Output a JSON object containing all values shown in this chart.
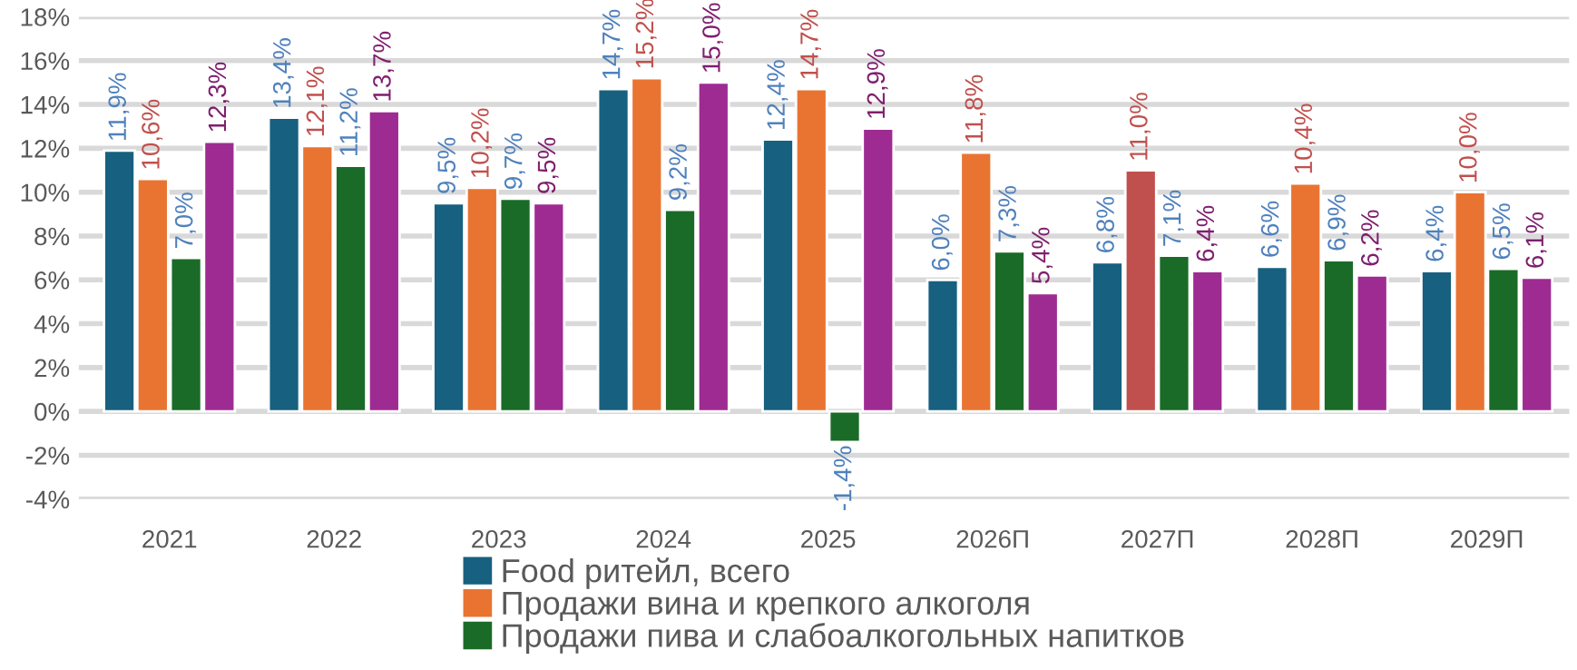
{
  "chart_data": {
    "type": "bar",
    "categories": [
      "2021",
      "2022",
      "2023",
      "2024",
      "2025",
      "2026П",
      "2027П",
      "2028П",
      "2029П"
    ],
    "series": [
      {
        "name": "Food ритейл, всего",
        "color": "#17607f",
        "values": [
          11.9,
          13.4,
          9.5,
          14.7,
          12.4,
          6.0,
          6.8,
          6.6,
          6.4
        ],
        "value_labels": [
          "11,9%",
          "13,4%",
          "9,5%",
          "14,7%",
          "12,4%",
          "6,0%",
          "6,8%",
          "6,6%",
          "6,4%"
        ]
      },
      {
        "name": "Продажи вина и крепкого алкоголя",
        "color": "#e97432",
        "colors": [
          "#e97432",
          "#e97432",
          "#e97432",
          "#e97432",
          "#e97432",
          "#e97432",
          "#c0504d",
          "#e97432",
          "#e97432"
        ],
        "values": [
          10.6,
          12.1,
          10.2,
          15.2,
          14.7,
          11.8,
          11.0,
          10.4,
          10.0
        ],
        "value_labels": [
          "10,6%",
          "12,1%",
          "10,2%",
          "15,2%",
          "14,7%",
          "11,8%",
          "11,0%",
          "10,4%",
          "10,0%"
        ]
      },
      {
        "name": "Продажи пива и слабоалкогольных напитков",
        "color": "#1a6b27",
        "values": [
          7.0,
          11.2,
          9.7,
          9.2,
          -1.4,
          7.3,
          7.1,
          6.9,
          6.5
        ],
        "value_labels": [
          "7,0%",
          "11,2%",
          "9,7%",
          "9,2%",
          "-1,4%",
          "7,3%",
          "7,1%",
          "6,9%",
          "6,5%"
        ]
      },
      {
        "color": "#9e2b92",
        "values": [
          12.3,
          13.7,
          9.5,
          15.0,
          12.9,
          5.4,
          6.4,
          6.2,
          6.1
        ],
        "value_labels": [
          "12,3%",
          "13,7%",
          "9,5%",
          "15,0%",
          "12,9%",
          "5,4%",
          "6,4%",
          "6,2%",
          "6,1%"
        ]
      }
    ],
    "ylim": [
      -4,
      18
    ],
    "yticks": [
      {
        "value": -4,
        "label": "-4%"
      },
      {
        "value": -2,
        "label": "-2%"
      },
      {
        "value": 0,
        "label": "0%"
      },
      {
        "value": 2,
        "label": "2%"
      },
      {
        "value": 4,
        "label": "4%"
      },
      {
        "value": 6,
        "label": "6%"
      },
      {
        "value": 8,
        "label": "8%"
      },
      {
        "value": 10,
        "label": "10%"
      },
      {
        "value": 12,
        "label": "12%"
      },
      {
        "value": 14,
        "label": "14%"
      },
      {
        "value": 16,
        "label": "16%"
      },
      {
        "value": 18,
        "label": "18%"
      }
    ],
    "grid": "y",
    "legend": "bottom"
  }
}
